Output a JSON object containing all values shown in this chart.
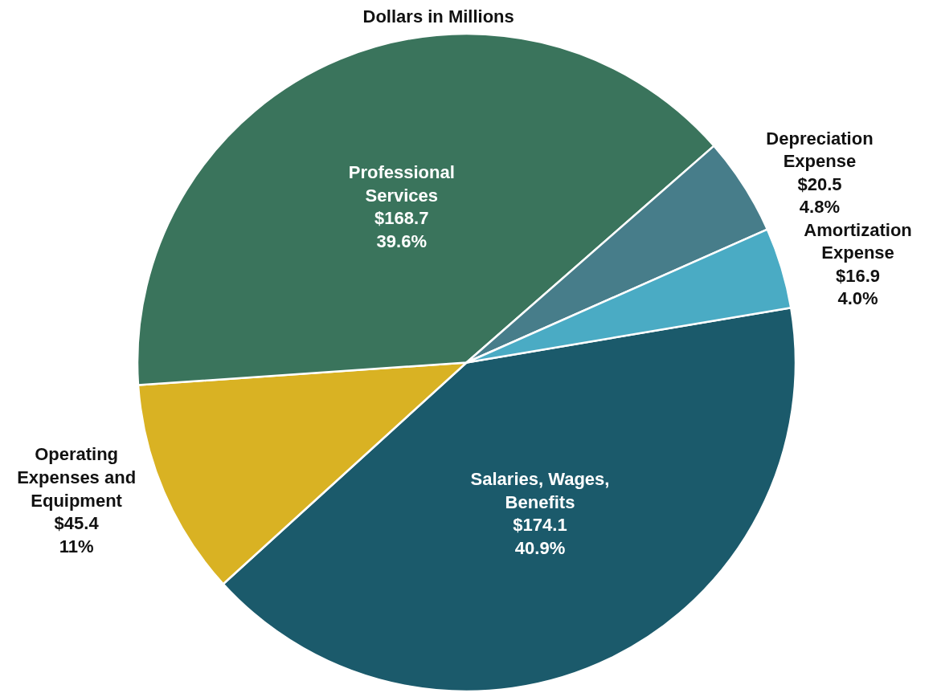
{
  "chart_data": {
    "type": "pie",
    "title": "Dollars in Millions",
    "categories": [
      "Salaries, Wages, Benefits",
      "Operating Expenses and Equipment",
      "Professional Services",
      "Depreciation Expense",
      "Amortization Expense"
    ],
    "values": [
      174.1,
      45.4,
      168.7,
      20.5,
      16.9
    ],
    "value_labels": [
      "$174.1\n40.9%",
      "$45.4\n11%",
      "$168.7\n39.6%",
      "$20.5\n4.8%",
      "$16.9\n4.0%"
    ],
    "colors": [
      "#1b5a6b",
      "#d9b223",
      "#3a745c",
      "#477d8a",
      "#4aabc4"
    ],
    "legend": false
  }
}
